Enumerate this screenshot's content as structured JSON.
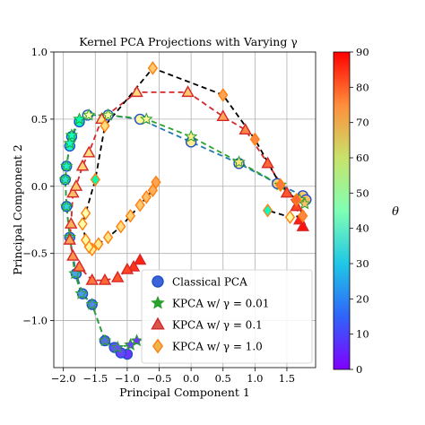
{
  "chart_data": {
    "type": "scatter",
    "title": "Kernel PCA Projections with Varying γ",
    "xlabel": "Principal Component 1",
    "ylabel": "Principal Component 2",
    "xlim": [
      -2.15,
      1.95
    ],
    "ylim": [
      -1.35,
      1.0
    ],
    "xticks": [
      "−2.0",
      "−1.5",
      "−1.0",
      "−0.5",
      "0.0",
      "0.5",
      "1.0",
      "1.5"
    ],
    "xtick_values": [
      -2.0,
      -1.5,
      -1.0,
      -0.5,
      0.0,
      0.5,
      1.0,
      1.5
    ],
    "yticks": [
      "1.0",
      "0.5",
      "0.0",
      "−0.5",
      "−1.0"
    ],
    "ytick_values": [
      1.0,
      0.5,
      0.0,
      -0.5,
      -1.0
    ],
    "grid": true,
    "legend_position": "lower-right",
    "colorbar": {
      "label": "θ",
      "min": 0,
      "max": 90,
      "ticks": [
        "0",
        "10",
        "20",
        "30",
        "40",
        "50",
        "60",
        "70",
        "80",
        "90"
      ],
      "tick_values": [
        0,
        10,
        20,
        30,
        40,
        50,
        60,
        70,
        80,
        90
      ],
      "colormap": "rainbow"
    },
    "series": [
      {
        "name": "Classical PCA",
        "marker": "circle",
        "line_color": "#1f77b4",
        "edge_color": "#1f4fc9",
        "points": [
          [
            -1.0,
            -1.25,
            6
          ],
          [
            -1.1,
            -1.24,
            8
          ],
          [
            -1.2,
            -1.2,
            10
          ],
          [
            -1.35,
            -1.15,
            12
          ],
          [
            -1.55,
            -0.88,
            16
          ],
          [
            -1.7,
            -0.8,
            18
          ],
          [
            -1.8,
            -0.65,
            20
          ],
          [
            -1.9,
            -0.38,
            24
          ],
          [
            -1.95,
            -0.15,
            28
          ],
          [
            -1.97,
            0.05,
            32
          ],
          [
            -1.95,
            0.15,
            34
          ],
          [
            -1.9,
            0.3,
            38
          ],
          [
            -1.87,
            0.37,
            40
          ],
          [
            -1.75,
            0.48,
            44
          ],
          [
            -1.62,
            0.53,
            46
          ],
          [
            -1.3,
            0.53,
            50
          ],
          [
            -0.8,
            0.5,
            52
          ],
          [
            0.0,
            0.33,
            56
          ],
          [
            0.75,
            0.17,
            58
          ],
          [
            1.35,
            0.02,
            62
          ],
          [
            1.75,
            -0.07,
            64
          ],
          [
            1.8,
            -0.1,
            66
          ]
        ]
      },
      {
        "name": "KPCA w/ γ = 0.01",
        "marker": "star",
        "line_color": "#2ca02c",
        "edge_color": "#2ca02c",
        "points": [
          [
            -0.85,
            -1.15,
            6
          ],
          [
            -0.95,
            -1.18,
            8
          ],
          [
            -1.15,
            -1.2,
            10
          ],
          [
            -1.35,
            -1.15,
            12
          ],
          [
            -1.55,
            -0.88,
            16
          ],
          [
            -1.72,
            -0.8,
            18
          ],
          [
            -1.82,
            -0.65,
            20
          ],
          [
            -1.9,
            -0.38,
            24
          ],
          [
            -1.95,
            -0.15,
            28
          ],
          [
            -1.97,
            0.05,
            32
          ],
          [
            -1.95,
            0.15,
            34
          ],
          [
            -1.9,
            0.32,
            38
          ],
          [
            -1.87,
            0.38,
            40
          ],
          [
            -1.75,
            0.5,
            44
          ],
          [
            -1.6,
            0.53,
            46
          ],
          [
            -1.3,
            0.53,
            50
          ],
          [
            -0.7,
            0.5,
            52
          ],
          [
            0.0,
            0.37,
            56
          ],
          [
            0.75,
            0.18,
            58
          ],
          [
            1.4,
            0.01,
            62
          ],
          [
            1.7,
            -0.1,
            64
          ],
          [
            1.78,
            -0.13,
            66
          ]
        ]
      },
      {
        "name": "KPCA w/ γ = 0.1",
        "marker": "triangle",
        "line_color": "#d62728",
        "edge_color": "#d62728",
        "points": [
          [
            -0.8,
            -0.55,
            86
          ],
          [
            -0.9,
            -0.6,
            84
          ],
          [
            -1.0,
            -0.62,
            82
          ],
          [
            -1.15,
            -0.68,
            80
          ],
          [
            -1.35,
            -0.7,
            78
          ],
          [
            -1.55,
            -0.7,
            76
          ],
          [
            -1.75,
            -0.6,
            74
          ],
          [
            -1.85,
            -0.52,
            72
          ],
          [
            -1.9,
            -0.4,
            70
          ],
          [
            -1.88,
            -0.28,
            68
          ],
          [
            -1.85,
            -0.05,
            66
          ],
          [
            -1.8,
            0.0,
            64
          ],
          [
            -1.7,
            0.15,
            62
          ],
          [
            -1.6,
            0.25,
            60
          ],
          [
            -1.4,
            0.5,
            58
          ],
          [
            -0.85,
            0.7,
            60
          ],
          [
            -0.05,
            0.7,
            64
          ],
          [
            0.5,
            0.52,
            70
          ],
          [
            0.85,
            0.42,
            74
          ],
          [
            1.2,
            0.17,
            78
          ],
          [
            1.5,
            -0.05,
            80
          ],
          [
            1.65,
            -0.15,
            82
          ],
          [
            1.7,
            -0.25,
            86
          ],
          [
            1.75,
            -0.3,
            88
          ]
        ]
      },
      {
        "name": "KPCA w/ γ = 1.0",
        "marker": "diamond",
        "line_color": "#000000",
        "edge_color": "#ff7f0e",
        "points": [
          [
            -0.55,
            0.03,
            70
          ],
          [
            -0.6,
            -0.03,
            68
          ],
          [
            -0.7,
            -0.08,
            66
          ],
          [
            -0.8,
            -0.14,
            64
          ],
          [
            -0.95,
            -0.22,
            62
          ],
          [
            -1.1,
            -0.3,
            60
          ],
          [
            -1.3,
            -0.38,
            58
          ],
          [
            -1.45,
            -0.43,
            56
          ],
          [
            -1.55,
            -0.47,
            54
          ],
          [
            -1.6,
            -0.45,
            52
          ],
          [
            -1.65,
            -0.4,
            50
          ],
          [
            -1.7,
            -0.28,
            48
          ],
          [
            -1.65,
            -0.2,
            46
          ],
          [
            -1.5,
            0.05,
            45
          ],
          [
            -1.35,
            0.45,
            60
          ],
          [
            -0.6,
            0.88,
            64
          ],
          [
            0.5,
            0.68,
            70
          ],
          [
            1.0,
            0.35,
            74
          ],
          [
            1.4,
            0.01,
            76
          ],
          [
            1.65,
            -0.1,
            78
          ],
          [
            1.75,
            -0.22,
            74
          ],
          [
            1.55,
            -0.23,
            50
          ],
          [
            1.2,
            -0.18,
            40
          ]
        ]
      }
    ]
  }
}
